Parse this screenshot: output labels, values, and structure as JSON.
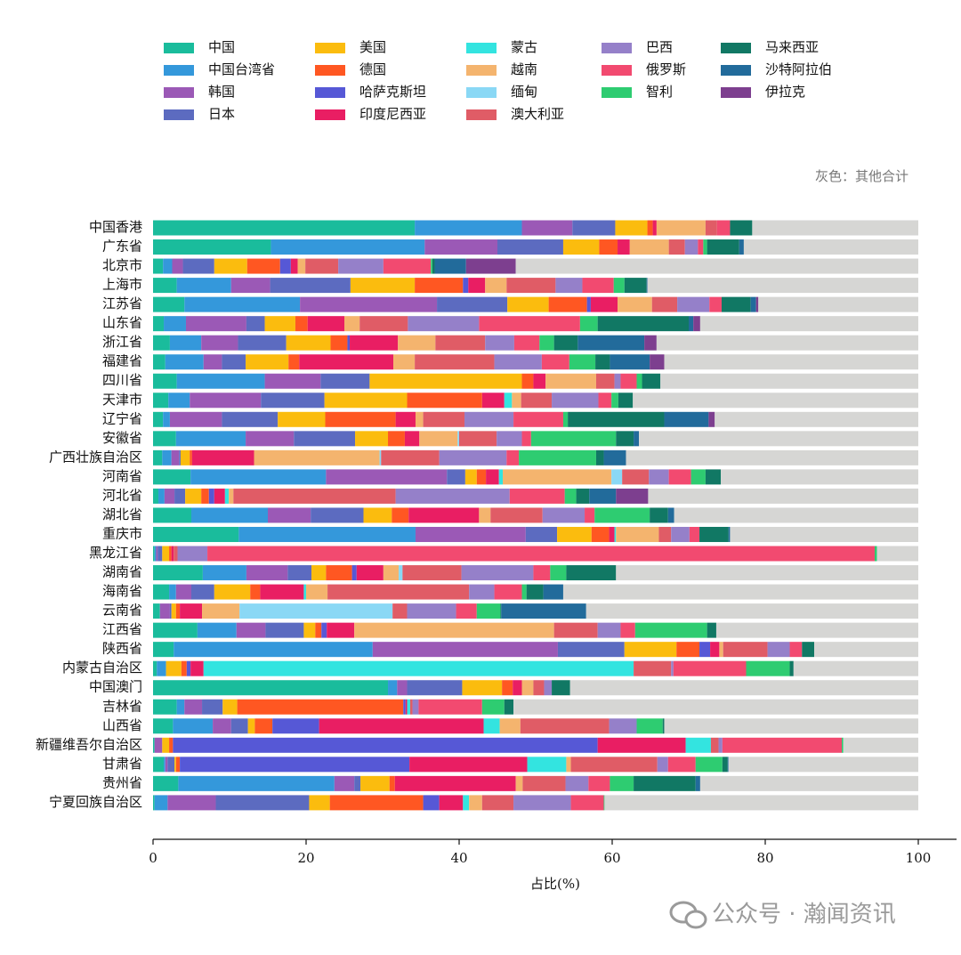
{
  "chart_data": {
    "type": "bar",
    "orientation": "horizontal",
    "stacked": true,
    "xlabel": "占比(%)",
    "annotation": "灰色：其他合计",
    "watermark": "公众号 · 瀚闻资讯",
    "xlim": [
      0,
      105
    ],
    "xticks": [
      0,
      20,
      40,
      60,
      80,
      100
    ],
    "legend": "top",
    "categories": [
      "中国香港",
      "广东省",
      "北京市",
      "上海市",
      "江苏省",
      "山东省",
      "浙江省",
      "福建省",
      "四川省",
      "天津市",
      "辽宁省",
      "安徽省",
      "广西壮族自治区",
      "河南省",
      "河北省",
      "湖北省",
      "重庆市",
      "黑龙江省",
      "湖南省",
      "海南省",
      "云南省",
      "江西省",
      "陕西省",
      "内蒙古自治区",
      "中国澳门",
      "吉林省",
      "山西省",
      "新疆维吾尔自治区",
      "甘肃省",
      "贵州省",
      "宁夏回族自治区"
    ],
    "series": [
      {
        "name": "中国",
        "color": "#1abc9c",
        "values": [
          34.2,
          15.4,
          1.3,
          3.1,
          4.1,
          1.4,
          2.2,
          1.6,
          3.1,
          2.0,
          1.3,
          3.0,
          1.2,
          4.9,
          0.7,
          5.0,
          11.2,
          0.2,
          6.5,
          2.1,
          0.9,
          5.8,
          2.7,
          0.5,
          30.7,
          3.1,
          2.6,
          0.2,
          1.4,
          3.3,
          0.2
        ]
      },
      {
        "name": "中国台湾省",
        "color": "#3498db",
        "values": [
          14.0,
          20.1,
          1.2,
          7.1,
          15.1,
          2.9,
          4.1,
          5.0,
          11.5,
          2.8,
          0.9,
          9.1,
          1.2,
          17.7,
          0.8,
          10.0,
          23.1,
          0.2,
          5.7,
          0.9,
          0,
          5.1,
          26.0,
          1.2,
          1.2,
          1.0,
          5.2,
          0,
          0.2,
          20.4,
          1.7
        ]
      },
      {
        "name": "韩国",
        "color": "#9b59b6",
        "values": [
          6.6,
          9.5,
          1.4,
          5.1,
          17.9,
          7.9,
          4.8,
          2.4,
          7.3,
          9.3,
          6.8,
          6.3,
          1.0,
          15.8,
          1.3,
          5.6,
          14.4,
          0.2,
          5.4,
          2.0,
          1.3,
          3.8,
          24.2,
          0,
          1.3,
          2.3,
          2.4,
          1.0,
          0.3,
          2.6,
          6.3
        ]
      },
      {
        "name": "日本",
        "color": "#5c6bc0",
        "values": [
          5.6,
          8.6,
          4.1,
          10.5,
          9.2,
          2.4,
          6.3,
          3.1,
          6.4,
          8.3,
          7.3,
          8.0,
          0.2,
          2.4,
          1.4,
          6.9,
          4.1,
          0.6,
          3.1,
          3.0,
          0.2,
          5.0,
          8.7,
          0,
          7.2,
          2.7,
          2.2,
          0,
          0.9,
          0.8,
          12.2
        ]
      },
      {
        "name": "美国",
        "color": "#fbbc0e",
        "values": [
          4.2,
          4.7,
          4.3,
          8.4,
          5.4,
          4.0,
          5.8,
          5.6,
          19.9,
          10.8,
          6.2,
          4.3,
          1.2,
          1.5,
          2.1,
          3.7,
          4.5,
          0.9,
          1.9,
          4.7,
          0.6,
          1.5,
          6.8,
          2.0,
          5.2,
          1.9,
          0.9,
          0.9,
          0.2,
          3.8,
          2.7
        ]
      },
      {
        "name": "德国",
        "color": "#ff5722",
        "values": [
          0.7,
          2.4,
          4.3,
          6.3,
          5.0,
          1.6,
          2.2,
          1.4,
          1.5,
          9.8,
          9.2,
          2.2,
          0.3,
          1.2,
          1.0,
          2.2,
          2.3,
          0.3,
          3.4,
          1.3,
          0.5,
          0.8,
          3.0,
          0.7,
          1.4,
          21.7,
          2.3,
          0.5,
          0.5,
          0.7,
          12.2
        ]
      },
      {
        "name": "哈萨克斯坦",
        "color": "#5658d6",
        "values": [
          0,
          0,
          1.4,
          0.7,
          0.5,
          0,
          0.3,
          0,
          0,
          0,
          0,
          0,
          0,
          0,
          0.7,
          0,
          0,
          0,
          0.6,
          0,
          0,
          0.7,
          1.4,
          0.5,
          0,
          0.3,
          6.1,
          55.5,
          30.0,
          0,
          2.1
        ]
      },
      {
        "name": "印度尼西亚",
        "color": "#e91e63",
        "values": [
          0.5,
          1.6,
          0.9,
          2.2,
          3.5,
          4.8,
          6.3,
          12.3,
          1.6,
          2.9,
          2.6,
          1.9,
          8.1,
          1.7,
          1.4,
          9.2,
          0.7,
          0.3,
          3.5,
          5.7,
          2.9,
          3.6,
          1.2,
          1.7,
          1.2,
          0.2,
          21.5,
          11.5,
          15.4,
          15.8,
          3.1
        ]
      },
      {
        "name": "蒙古",
        "color": "#33e4e0",
        "values": [
          0,
          0,
          0,
          0,
          0,
          0,
          0,
          0,
          0,
          1.0,
          0,
          0,
          0,
          0.5,
          0.5,
          0,
          0.2,
          0,
          0,
          0.3,
          0,
          0,
          0,
          56.2,
          0,
          0.4,
          2.1,
          3.3,
          5.1,
          0,
          0.8
        ]
      },
      {
        "name": "越南",
        "color": "#f4b46e",
        "values": [
          6.4,
          5.1,
          1.0,
          2.8,
          4.5,
          2.0,
          4.9,
          2.8,
          6.6,
          1.2,
          1.0,
          5.0,
          16.4,
          14.2,
          0.6,
          1.5,
          5.6,
          0,
          2.0,
          2.8,
          4.9,
          26.1,
          0.5,
          0,
          1.5,
          0,
          2.7,
          0,
          0.6,
          0.9,
          1.7
        ]
      },
      {
        "name": "缅甸",
        "color": "#8ad8f5",
        "values": [
          0,
          0,
          0,
          0,
          0,
          0,
          0,
          0,
          0,
          0,
          0,
          0.2,
          0.2,
          1.4,
          0,
          0,
          0,
          0,
          0.5,
          0,
          20.0,
          0,
          0,
          0,
          0,
          0,
          0,
          0,
          0,
          0,
          0
        ]
      },
      {
        "name": "澳大利亚",
        "color": "#e05c66",
        "values": [
          1.5,
          2.1,
          4.3,
          6.4,
          3.3,
          6.3,
          6.5,
          10.4,
          2.4,
          4.0,
          5.4,
          4.9,
          7.6,
          3.5,
          21.2,
          6.8,
          1.6,
          0.5,
          7.7,
          18.5,
          1.9,
          5.7,
          5.8,
          4.9,
          1.4,
          0.3,
          11.6,
          1.0,
          11.3,
          5.6,
          4.1
        ]
      },
      {
        "name": "巴西",
        "color": "#9580c9",
        "values": [
          0,
          1.7,
          5.9,
          3.5,
          4.2,
          9.3,
          3.8,
          6.2,
          0.8,
          6.1,
          6.4,
          3.3,
          8.8,
          2.6,
          14.9,
          5.5,
          2.4,
          3.9,
          9.4,
          3.3,
          6.4,
          3.0,
          2.9,
          0.3,
          1.0,
          0.8,
          3.6,
          0.5,
          1.4,
          3.0,
          7.5
        ]
      },
      {
        "name": "俄罗斯",
        "color": "#f24a70",
        "values": [
          1.7,
          0.7,
          6.2,
          4.1,
          1.6,
          13.2,
          3.3,
          3.6,
          2.1,
          1.7,
          6.5,
          1.2,
          1.6,
          2.9,
          7.2,
          1.3,
          1.3,
          87.2,
          2.2,
          3.6,
          2.7,
          1.9,
          1.6,
          9.5,
          0,
          8.3,
          0,
          15.6,
          3.6,
          2.8,
          4.3
        ]
      },
      {
        "name": "智利",
        "color": "#2ecc71",
        "values": [
          0,
          0.5,
          0.2,
          1.4,
          0,
          2.3,
          1.9,
          3.4,
          0.7,
          0.9,
          0.6,
          11.1,
          10.1,
          1.9,
          1.5,
          7.2,
          0,
          0.3,
          2.1,
          0.6,
          3.1,
          9.4,
          0,
          5.7,
          0,
          2.9,
          3.4,
          0.2,
          3.5,
          3.1,
          0.1
        ]
      },
      {
        "name": "马来西亚",
        "color": "#117864",
        "values": [
          2.9,
          4.2,
          0.3,
          2.9,
          3.8,
          11.9,
          3.1,
          1.9,
          2.4,
          1.9,
          12.6,
          2.3,
          1.0,
          2.0,
          1.7,
          2.4,
          3.8,
          0,
          6.5,
          2.2,
          0.1,
          1.2,
          1.6,
          0.5,
          2.4,
          1.2,
          0.2,
          0,
          0.7,
          8.1,
          0
        ]
      },
      {
        "name": "沙特阿拉伯",
        "color": "#226b9b",
        "values": [
          0,
          0.6,
          4.1,
          0.1,
          0.7,
          0.6,
          8.7,
          5.2,
          0,
          0,
          5.8,
          0.7,
          2.9,
          0,
          3.5,
          0.8,
          0.2,
          0,
          0,
          2.6,
          11.1,
          0,
          0,
          0,
          0,
          0,
          0,
          0,
          0.1,
          0.6,
          0
        ]
      },
      {
        "name": "伊拉克",
        "color": "#7d3f8f",
        "values": [
          0,
          0,
          6.5,
          0,
          0.3,
          0.9,
          1.6,
          1.9,
          0,
          0,
          0.8,
          0,
          0,
          0,
          4.2,
          0,
          0,
          0,
          0,
          0,
          0,
          0,
          0,
          0,
          0,
          0,
          0,
          0,
          0,
          0,
          0
        ]
      }
    ],
    "other": {
      "color": "#d6d6d4",
      "values": [
        21.7,
        22.8,
        52.6,
        35.4,
        20.9,
        28.5,
        34.2,
        33.2,
        33.7,
        37.3,
        26.6,
        36.5,
        38.2,
        25.8,
        35.3,
        31.9,
        24.6,
        5.4,
        39.5,
        46.4,
        43.4,
        26.4,
        13.6,
        16.3,
        45.5,
        52.9,
        33.2,
        9.8,
        24.8,
        28.5,
        41
      ]
    }
  }
}
